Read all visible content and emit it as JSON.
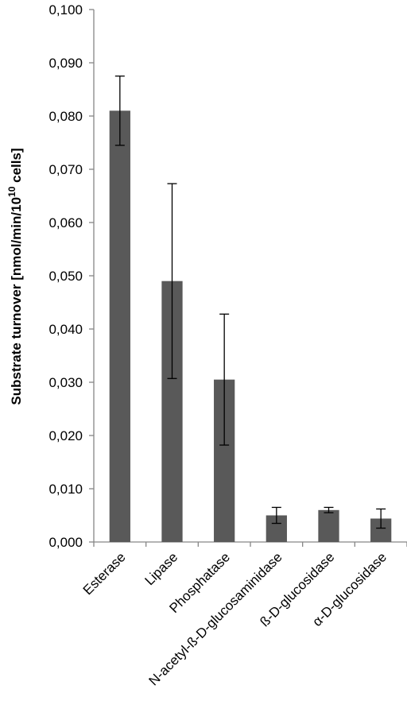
{
  "chart_data": {
    "type": "bar",
    "title": "",
    "xlabel": "",
    "ylabel": "Substrate turnover [nmol/min/10",
    "ylabel_sup": "10",
    "ylabel_end": " cells]",
    "ylim": [
      0,
      0.1
    ],
    "yticks": [
      "0,000",
      "0,010",
      "0,020",
      "0,030",
      "0,040",
      "0,050",
      "0,060",
      "0,070",
      "0,080",
      "0,090",
      "0,100"
    ],
    "categories": [
      "Esterase",
      "Lipase",
      "Phosphatase",
      "N-acetyl-ß-D-glucosaminidase",
      "ß-D-glucosidase",
      "α-D-glucosidase"
    ],
    "values": [
      0.081,
      0.049,
      0.0305,
      0.005,
      0.006,
      0.0044
    ],
    "errors": [
      0.0065,
      0.0183,
      0.0123,
      0.0015,
      0.0005,
      0.0018
    ],
    "bar_color": "#595959",
    "grid": false,
    "legend": "none"
  }
}
